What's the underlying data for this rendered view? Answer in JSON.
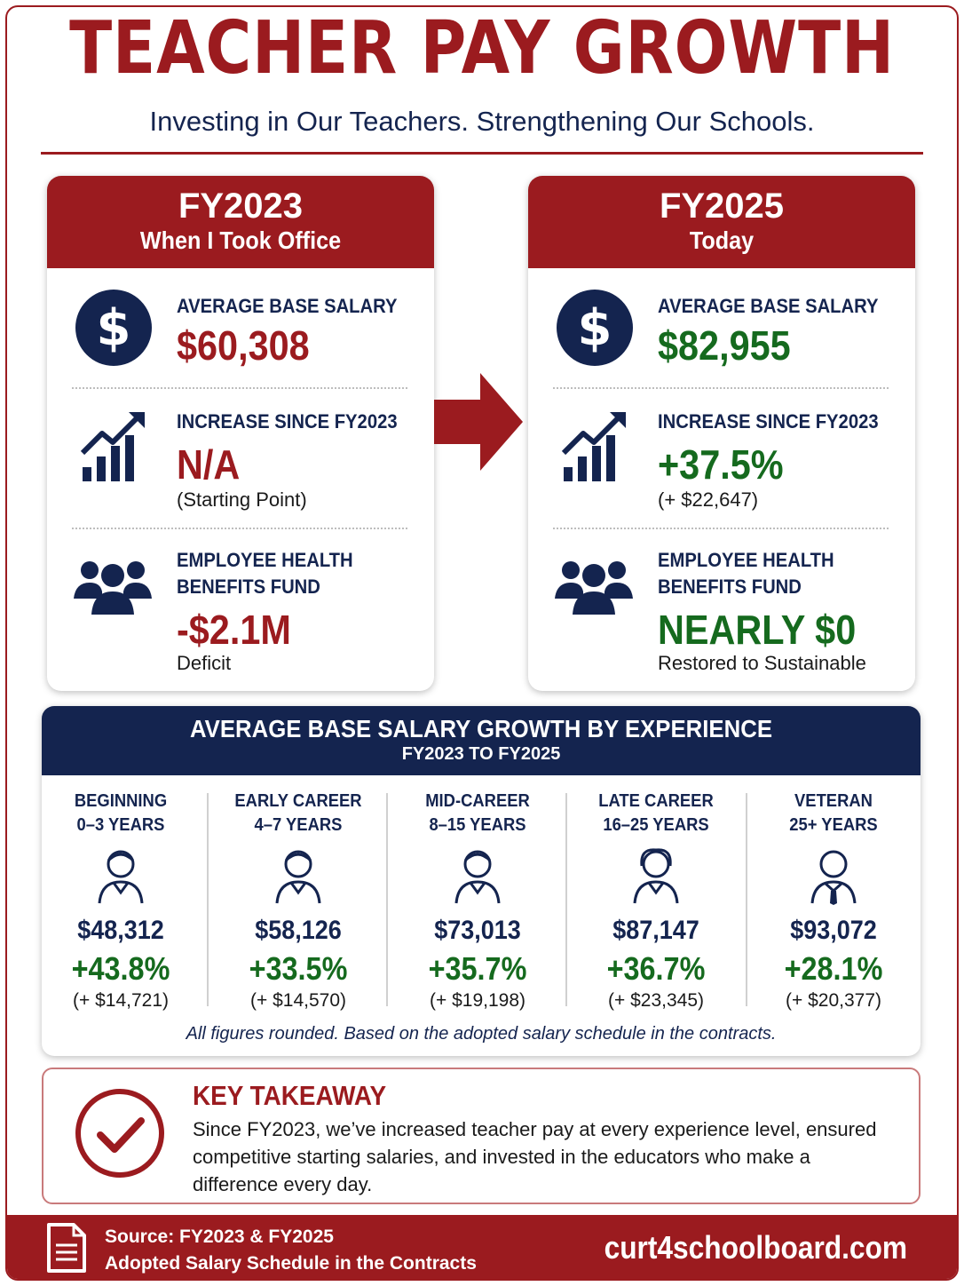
{
  "header": {
    "title": "TEACHER PAY GROWTH",
    "subtitle": "Investing in Our Teachers. Strengthening Our Schools."
  },
  "cards": [
    {
      "year": "FY2023",
      "subtitle": "When I Took Office",
      "salary_label": "AVERAGE BASE SALARY",
      "salary_value": "$60,308",
      "increase_label": "INCREASE SINCE FY2023",
      "increase_value": "N/A",
      "increase_note": "(Starting Point)",
      "health_label_1": "EMPLOYEE HEALTH",
      "health_label_2": "BENEFITS FUND",
      "health_value": "-$2.1M",
      "health_note": "Deficit"
    },
    {
      "year": "FY2025",
      "subtitle": "Today",
      "salary_label": "AVERAGE BASE SALARY",
      "salary_value": "$82,955",
      "increase_label": "INCREASE SINCE FY2023",
      "increase_value": "+37.5%",
      "increase_note": "(+ $22,647)",
      "health_label_1": "EMPLOYEE HEALTH",
      "health_label_2": "BENEFITS FUND",
      "health_value": "NEARLY $0",
      "health_note": "Restored to Sustainable"
    }
  ],
  "experience": {
    "title": "AVERAGE BASE SALARY GROWTH BY EXPERIENCE",
    "subtitle": "FY2023 TO FY2025",
    "columns": [
      {
        "label_1": "BEGINNING",
        "label_2": "0–3 YEARS",
        "salary": "$48,312",
        "pct": "+43.8%",
        "diff": "(+ $14,721)",
        "icon": "person-icon"
      },
      {
        "label_1": "EARLY CAREER",
        "label_2": "4–7 YEARS",
        "salary": "$58,126",
        "pct": "+33.5%",
        "diff": "(+ $14,570)",
        "icon": "person-icon"
      },
      {
        "label_1": "MID-CAREER",
        "label_2": "8–15 YEARS",
        "salary": "$73,013",
        "pct": "+35.7%",
        "diff": "(+ $19,198)",
        "icon": "person-icon"
      },
      {
        "label_1": "LATE CAREER",
        "label_2": "16–25 YEARS",
        "salary": "$87,147",
        "pct": "+36.7%",
        "diff": "(+ $23,345)",
        "icon": "person-icon"
      },
      {
        "label_1": "VETERAN",
        "label_2": "25+ YEARS",
        "salary": "$93,072",
        "pct": "+28.1%",
        "diff": "(+ $20,377)",
        "icon": "person-tie-icon"
      }
    ],
    "footnote": "All figures rounded. Based on the adopted salary schedule in the contracts."
  },
  "takeaway": {
    "title": "KEY TAKEAWAY",
    "text": "Since FY2023, we’ve increased teacher pay at every experience level, ensured competitive starting salaries, and invested in the educators who make a difference every day."
  },
  "footer": {
    "source_1": "Source: FY2023 & FY2025",
    "source_2": "Adopted Salary Schedule in the Contracts",
    "url": "curt4schoolboard.com"
  },
  "colors": {
    "brand_red": "#9b1b1f",
    "navy": "#14244f",
    "green": "#156a1e"
  }
}
